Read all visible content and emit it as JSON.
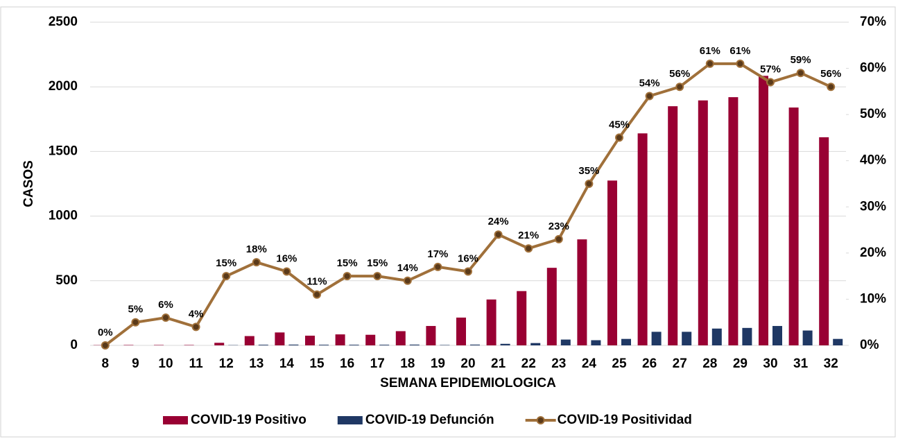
{
  "chart_data": {
    "type": "bar_line",
    "xlabel": "SEMANA EPIDEMIOLOGICA",
    "ylabel": "CASOS",
    "categories": [
      "8",
      "9",
      "10",
      "11",
      "12",
      "13",
      "14",
      "15",
      "16",
      "17",
      "18",
      "19",
      "20",
      "21",
      "22",
      "23",
      "24",
      "25",
      "26",
      "27",
      "28",
      "29",
      "30",
      "31",
      "32"
    ],
    "series": [
      {
        "name": "COVID-19 Positivo",
        "type": "bar",
        "color": "#990033",
        "values": [
          2,
          3,
          3,
          3,
          20,
          72,
          100,
          75,
          85,
          82,
          110,
          150,
          215,
          355,
          420,
          600,
          820,
          1275,
          1640,
          1850,
          1895,
          1920,
          2085,
          1840,
          1610
        ]
      },
      {
        "name": "COVID-19 Defunción",
        "type": "bar",
        "color": "#1f3864",
        "values": [
          0,
          0,
          0,
          0,
          2,
          5,
          6,
          5,
          5,
          5,
          6,
          3,
          6,
          12,
          18,
          45,
          40,
          50,
          105,
          105,
          130,
          135,
          150,
          115,
          50
        ]
      },
      {
        "name": "COVID-19 Positividad",
        "type": "line",
        "axis": "y2",
        "color": "#a0703a",
        "values": [
          0,
          5,
          6,
          4,
          15,
          18,
          16,
          11,
          15,
          15,
          14,
          17,
          16,
          24,
          21,
          23,
          35,
          45,
          54,
          56,
          61,
          61,
          57,
          59,
          56
        ],
        "value_labels": [
          "0%",
          "5%",
          "6%",
          "4%",
          "15%",
          "18%",
          "16%",
          "11%",
          "15%",
          "15%",
          "14%",
          "17%",
          "16%",
          "24%",
          "21%",
          "23%",
          "35%",
          "45%",
          "54%",
          "56%",
          "61%",
          "61%",
          "57%",
          "59%",
          "56%"
        ]
      }
    ],
    "ylim": [
      0,
      2500
    ],
    "yticks": [
      0,
      500,
      1000,
      1500,
      2000,
      2500
    ],
    "y2lim": [
      0,
      70
    ],
    "y2ticks": [
      {
        "value": 0,
        "label": "0%"
      },
      {
        "value": 10,
        "label": "10%"
      },
      {
        "value": 20,
        "label": "20%"
      },
      {
        "value": 30,
        "label": "30%"
      },
      {
        "value": 40,
        "label": "40%"
      },
      {
        "value": 50,
        "label": "50%"
      },
      {
        "value": 60,
        "label": "60%"
      },
      {
        "value": 70,
        "label": "70%"
      }
    ],
    "grid": true,
    "legend": "bottom"
  }
}
